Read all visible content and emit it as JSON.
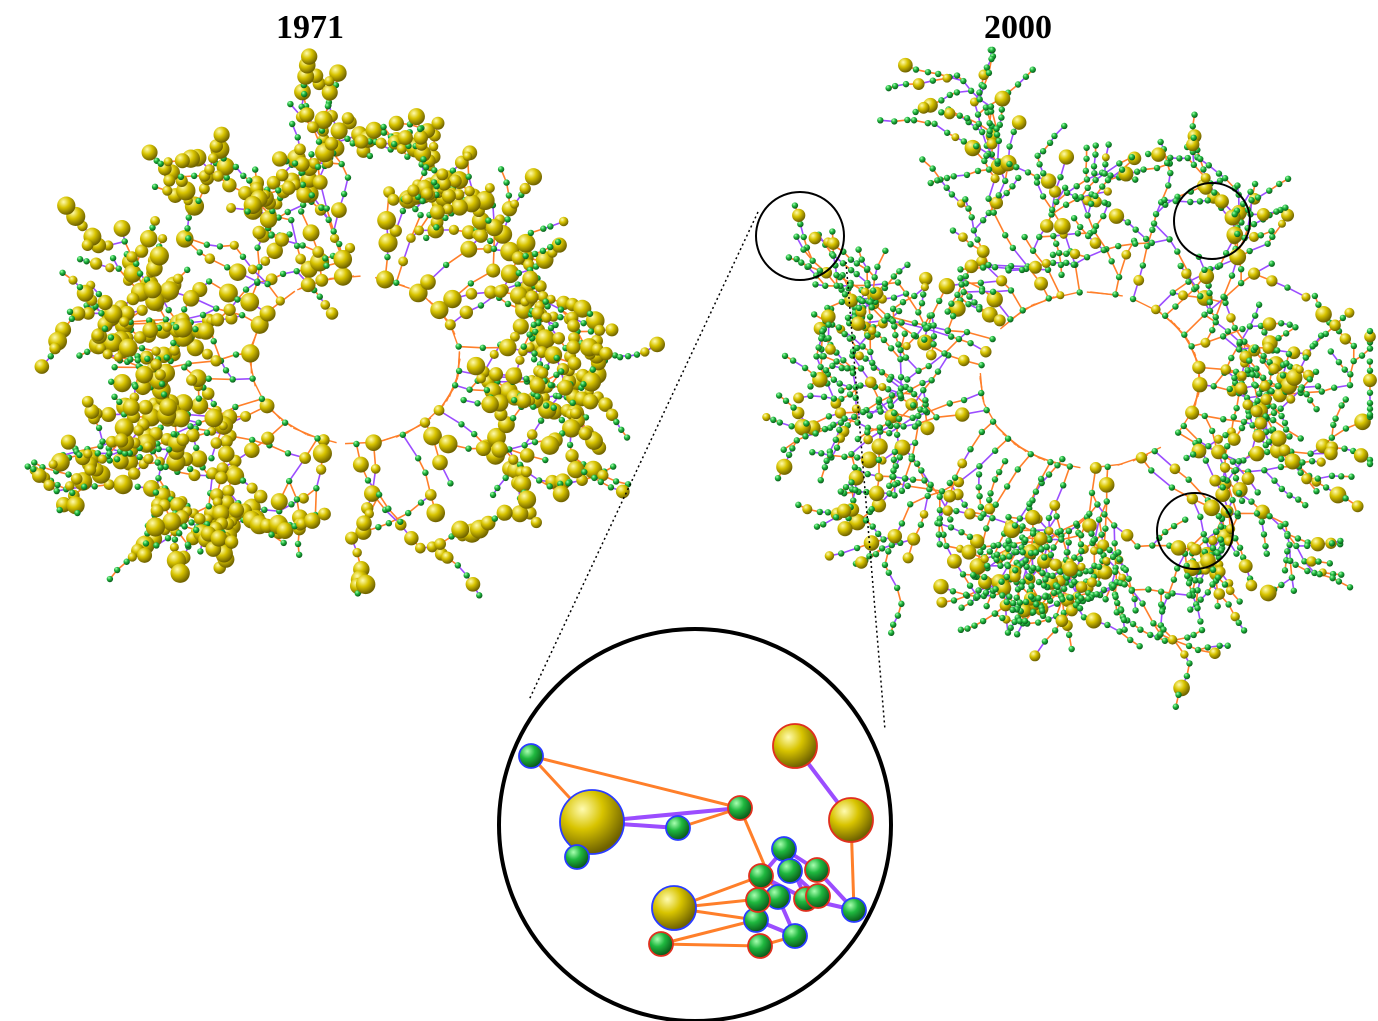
{
  "panels": [
    {
      "label": "1971"
    },
    {
      "label": "2000"
    }
  ],
  "colors": {
    "large_node": "#c8b400",
    "large_node_highlight": "#fff9a0",
    "small_node": "#1aa33a",
    "small_node_highlight": "#8ef08f",
    "edge_orange": "#ff7f2a",
    "edge_purple": "#9b4dff",
    "node_outline_blue": "#2a3cff",
    "node_outline_red": "#e0301e",
    "circle_outline": "#000000"
  },
  "zoom_detail": {
    "nodes": [
      {
        "kind": "small",
        "outline": "blue"
      },
      {
        "kind": "large",
        "outline": "blue"
      },
      {
        "kind": "small",
        "outline": "blue"
      },
      {
        "kind": "small",
        "outline": "blue"
      },
      {
        "kind": "large",
        "outline": "blue"
      },
      {
        "kind": "large",
        "outline": "red"
      },
      {
        "kind": "small",
        "outline": "red"
      },
      {
        "kind": "small",
        "outline": "red"
      },
      {
        "kind": "large",
        "outline": "red"
      },
      {
        "kind": "small",
        "outline": "blue"
      },
      {
        "kind": "small",
        "outline": "red"
      },
      {
        "kind": "small",
        "outline": "red"
      },
      {
        "kind": "small",
        "outline": "blue"
      },
      {
        "kind": "small",
        "outline": "red"
      },
      {
        "kind": "small",
        "outline": "blue"
      },
      {
        "kind": "small",
        "outline": "blue"
      },
      {
        "kind": "small",
        "outline": "red"
      },
      {
        "kind": "small",
        "outline": "blue"
      },
      {
        "kind": "small",
        "outline": "red"
      },
      {
        "kind": "small",
        "outline": "blue"
      },
      {
        "kind": "small",
        "outline": "red"
      }
    ]
  }
}
